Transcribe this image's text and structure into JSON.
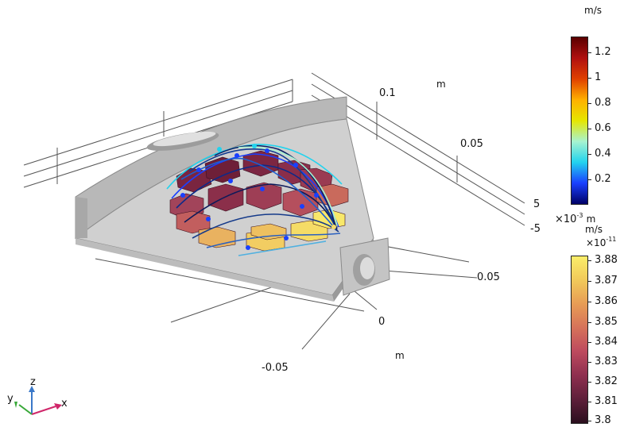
{
  "axes": {
    "unit_label": "m",
    "ticks": {
      "y_top": "0.1",
      "y_mid": "0.05",
      "x_right": "0.05",
      "x_zero": "0",
      "x_left": "-0.05",
      "z_pos": "5",
      "z_neg": "-5",
      "z_scale_base": "×10",
      "z_scale_exp": "-3",
      "z_unit": "m"
    }
  },
  "triad": {
    "x": "x",
    "y": "y",
    "z": "z"
  },
  "colorbar_velocity": {
    "unit": "m/s",
    "ticks": [
      "1.2",
      "1",
      "0.8",
      "0.6",
      "0.4",
      "0.2"
    ],
    "colors": [
      "#000066",
      "#1a40ff",
      "#22d3ee",
      "#a7f3d0",
      "#e6e600",
      "#ffb000",
      "#e04000",
      "#b01010",
      "#5a0000"
    ]
  },
  "colorbar_conc": {
    "unit": "m/s",
    "scale_base": "×10",
    "scale_exp": "-11",
    "ticks": [
      "3.88",
      "3.87",
      "3.86",
      "3.85",
      "3.84",
      "3.83",
      "3.82",
      "3.81",
      "3.8"
    ],
    "colors": [
      "#2b0f1e",
      "#5e1f3a",
      "#8e2f4f",
      "#bd4a5e",
      "#d6725a",
      "#e79c55",
      "#f1c95a",
      "#fbee6a"
    ]
  }
}
